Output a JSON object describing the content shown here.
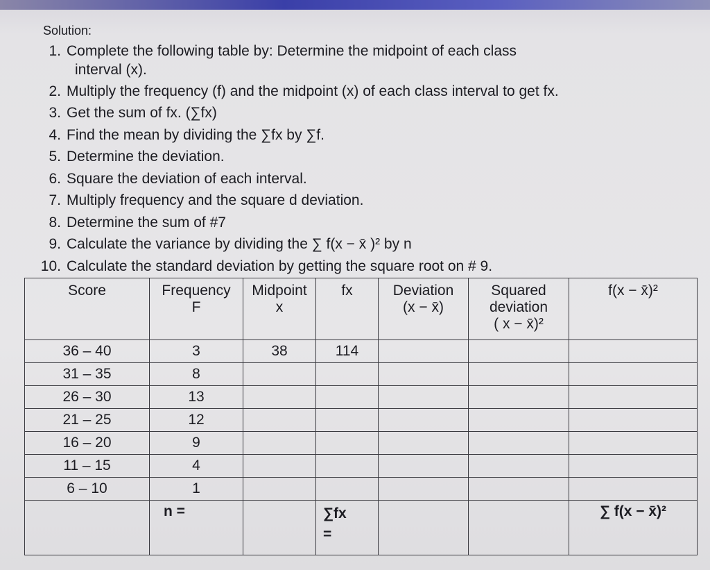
{
  "heading": "Solution:",
  "steps": [
    {
      "num": "1.",
      "text": "Complete the following table by: Determine the midpoint of each class",
      "cont": "interval (x)."
    },
    {
      "num": "2.",
      "text": "Multiply the frequency (f) and the midpoint (x) of each class interval to get fx."
    },
    {
      "num": "3.",
      "text": "Get the sum of fx.    (∑fx)"
    },
    {
      "num": "4.",
      "text": "Find the mean by dividing the ∑fx  by ∑f."
    },
    {
      "num": "5.",
      "text": "Determine the deviation."
    },
    {
      "num": "6.",
      "text": "Square the deviation of each interval."
    },
    {
      "num": "7.",
      "text": "Multiply frequency and the square d deviation."
    },
    {
      "num": "8.",
      "text": "Determine the sum of #7"
    },
    {
      "num": "9.",
      "text": "Calculate the variance by dividing the ∑ f(x − x̄ )² by n"
    },
    {
      "num": "10.",
      "text": "Calculate the standard deviation by getting the square root on # 9."
    }
  ],
  "table": {
    "headers": [
      [
        "Score"
      ],
      [
        "Frequency",
        "F"
      ],
      [
        "Midpoint",
        "x"
      ],
      [
        "fx"
      ],
      [
        "Deviation",
        "(x − x̄)"
      ],
      [
        "Squared",
        "deviation",
        "( x − x̄)²"
      ],
      [
        "f(x − x̄)²"
      ]
    ],
    "rows": [
      [
        "36 – 40",
        "3",
        "38",
        "114",
        "",
        "",
        ""
      ],
      [
        "31 – 35",
        "8",
        "",
        "",
        "",
        "",
        ""
      ],
      [
        "26 – 30",
        "13",
        "",
        "",
        "",
        "",
        ""
      ],
      [
        "21 – 25",
        "12",
        "",
        "",
        "",
        "",
        ""
      ],
      [
        "16 – 20",
        "9",
        "",
        "",
        "",
        "",
        ""
      ],
      [
        "11 – 15",
        "4",
        "",
        "",
        "",
        "",
        ""
      ],
      [
        "6 – 10",
        "1",
        "",
        "",
        "",
        "",
        ""
      ]
    ],
    "totals": {
      "n": "n =",
      "sum_fx": "∑fx",
      "sum_fx_eq": "=",
      "sum_f_dev_sq": "∑ f(x − x̄)²"
    }
  }
}
